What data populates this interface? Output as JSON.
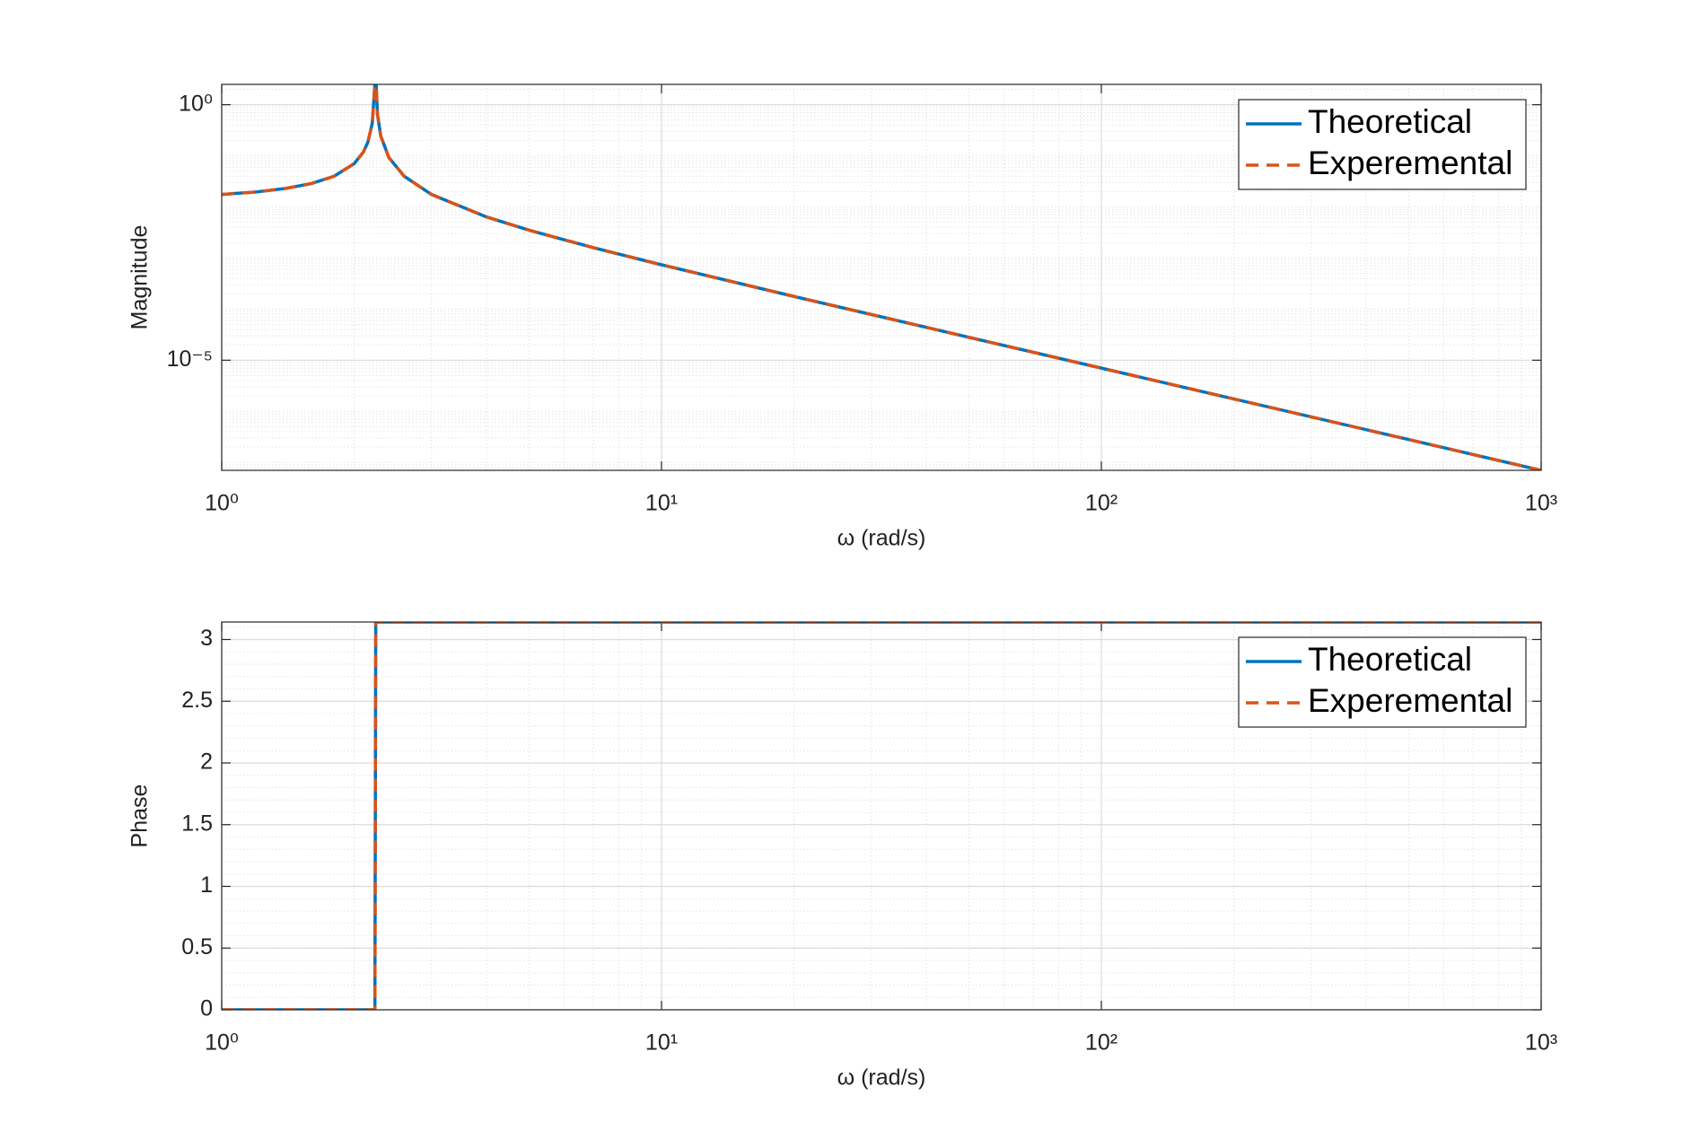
{
  "chart_data": [
    {
      "type": "line",
      "y_label": "Magnitude",
      "x_label": "ω (rad/s)",
      "x_scale": "log",
      "y_scale": "log",
      "grid": true,
      "minor_grid": true,
      "legend": "northeast",
      "xlim": [
        1,
        1000
      ],
      "ylim": [
        7e-08,
        2.5
      ],
      "xticks": [
        {
          "value": 1,
          "label": "10⁰"
        },
        {
          "value": 10,
          "label": "10¹"
        },
        {
          "value": 100,
          "label": "10²"
        },
        {
          "value": 1000,
          "label": "10³"
        }
      ],
      "yticks": [
        {
          "value": 1e-05,
          "label": "10⁻⁵"
        },
        {
          "value": 1,
          "label": "10⁰"
        }
      ],
      "x": [
        1,
        1.2,
        1.4,
        1.6,
        1.8,
        2,
        2.1,
        2.15,
        2.2,
        2.23,
        2.24,
        2.26,
        2.3,
        2.4,
        2.6,
        3,
        4,
        5,
        7,
        10,
        20,
        50,
        100,
        200,
        500,
        1000
      ],
      "series": [
        {
          "name": "Theoretical",
          "color": "#0072bd",
          "dash": false,
          "values": [
            0.0175,
            0.01966,
            0.02303,
            0.02869,
            0.03977,
            0.07,
            0.1186,
            0.1854,
            0.4375,
            2.583,
            3.977,
            0.6506,
            0.2414,
            0.09211,
            0.03977,
            0.0175,
            0.006364,
            0.0035,
            0.001591,
            0.0007368,
            0.0001772,
            2.806e-05,
            7.004e-06,
            1.75e-06,
            2.8e-07,
            7e-08
          ]
        },
        {
          "name": "Experemental",
          "color": "#d95319",
          "dash": true,
          "values": [
            0.0175,
            0.01966,
            0.02303,
            0.02869,
            0.03977,
            0.07,
            0.1186,
            0.1854,
            0.4375,
            2.583,
            3.977,
            0.6506,
            0.2414,
            0.09211,
            0.03977,
            0.0175,
            0.006364,
            0.0035,
            0.001591,
            0.0007368,
            0.0001772,
            2.806e-05,
            7.004e-06,
            1.75e-06,
            2.8e-07,
            7e-08
          ]
        }
      ]
    },
    {
      "type": "line",
      "y_label": "Phase",
      "x_label": "ω (rad/s)",
      "x_scale": "log",
      "y_scale": "linear",
      "grid": true,
      "minor_grid": true,
      "legend": "northeast",
      "xlim": [
        1,
        1000
      ],
      "ylim": [
        0,
        3.1416
      ],
      "xticks": [
        {
          "value": 1,
          "label": "10⁰"
        },
        {
          "value": 10,
          "label": "10¹"
        },
        {
          "value": 100,
          "label": "10²"
        },
        {
          "value": 1000,
          "label": "10³"
        }
      ],
      "yticks": [
        0,
        0.5,
        1,
        1.5,
        2,
        2.5,
        3
      ],
      "x": [
        1,
        2,
        2.23,
        2.24,
        10,
        100,
        1000
      ],
      "series": [
        {
          "name": "Theoretical",
          "color": "#0072bd",
          "dash": false,
          "values": [
            0,
            0,
            0,
            3.1416,
            3.1416,
            3.1416,
            3.1416
          ]
        },
        {
          "name": "Experemental",
          "color": "#d95319",
          "dash": true,
          "values": [
            0,
            0,
            0,
            3.1416,
            3.1416,
            3.1416,
            3.1416
          ]
        }
      ]
    }
  ]
}
